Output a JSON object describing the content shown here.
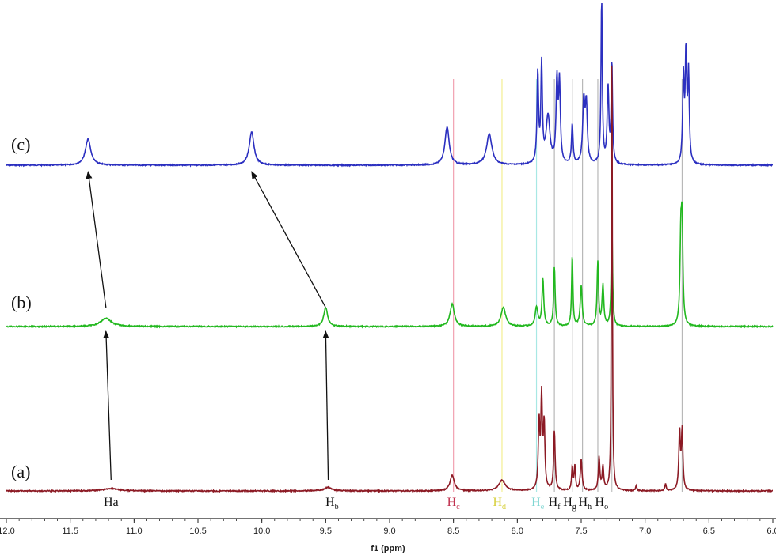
{
  "chart_data": {
    "type": "line",
    "title": "",
    "xlabel": "f1 (ppm)",
    "ylabel": "",
    "x_range": [
      12.0,
      6.0
    ],
    "reversed_x": true,
    "grid": false,
    "x_ticks": [
      "12.0",
      "11.5",
      "11.0",
      "10.5",
      "10.0",
      "9.5",
      "9.0",
      "8.5",
      "8.0",
      "7.5",
      "7.0",
      "6.5",
      "6.0"
    ],
    "series": [
      {
        "name": "(c)",
        "color": "#2b2fc0",
        "peaks": [
          {
            "ppm": 11.36,
            "h": 0.11,
            "w": 0.025
          },
          {
            "ppm": 10.08,
            "h": 0.14,
            "w": 0.022
          },
          {
            "ppm": 8.55,
            "h": 0.16,
            "w": 0.02
          },
          {
            "ppm": 8.22,
            "h": 0.13,
            "w": 0.025
          },
          {
            "ppm": 7.84,
            "h": 0.38,
            "w": 0.007
          },
          {
            "ppm": 7.81,
            "h": 0.41,
            "w": 0.007
          },
          {
            "ppm": 7.76,
            "h": 0.2,
            "w": 0.018
          },
          {
            "ppm": 7.69,
            "h": 0.34,
            "w": 0.008
          },
          {
            "ppm": 7.67,
            "h": 0.33,
            "w": 0.008
          },
          {
            "ppm": 7.57,
            "h": 0.17,
            "w": 0.007
          },
          {
            "ppm": 7.48,
            "h": 0.26,
            "w": 0.01
          },
          {
            "ppm": 7.46,
            "h": 0.24,
            "w": 0.009
          },
          {
            "ppm": 7.34,
            "h": 0.7,
            "w": 0.006
          },
          {
            "ppm": 7.29,
            "h": 0.32,
            "w": 0.008
          },
          {
            "ppm": 7.26,
            "h": 0.43,
            "w": 0.006
          },
          {
            "ppm": 6.7,
            "h": 0.36,
            "w": 0.007
          },
          {
            "ppm": 6.68,
            "h": 0.45,
            "w": 0.007
          },
          {
            "ppm": 6.66,
            "h": 0.37,
            "w": 0.007
          }
        ]
      },
      {
        "name": "(b)",
        "color": "#22b81f",
        "peaks": [
          {
            "ppm": 11.22,
            "h": 0.035,
            "w": 0.05
          },
          {
            "ppm": 9.5,
            "h": 0.08,
            "w": 0.018
          },
          {
            "ppm": 8.51,
            "h": 0.095,
            "w": 0.02
          },
          {
            "ppm": 8.11,
            "h": 0.08,
            "w": 0.022
          },
          {
            "ppm": 7.85,
            "h": 0.08,
            "w": 0.012
          },
          {
            "ppm": 7.8,
            "h": 0.2,
            "w": 0.008
          },
          {
            "ppm": 7.71,
            "h": 0.25,
            "w": 0.007
          },
          {
            "ppm": 7.57,
            "h": 0.3,
            "w": 0.006
          },
          {
            "ppm": 7.5,
            "h": 0.17,
            "w": 0.009
          },
          {
            "ppm": 7.37,
            "h": 0.27,
            "w": 0.007
          },
          {
            "ppm": 7.33,
            "h": 0.17,
            "w": 0.008
          },
          {
            "ppm": 7.26,
            "h": 0.45,
            "w": 0.006
          },
          {
            "ppm": 6.72,
            "h": 0.36,
            "w": 0.008
          },
          {
            "ppm": 6.71,
            "h": 0.38,
            "w": 0.007
          }
        ]
      },
      {
        "name": "(a)",
        "color": "#8c1a24",
        "peaks": [
          {
            "ppm": 11.18,
            "h": 0.01,
            "w": 0.07
          },
          {
            "ppm": 9.48,
            "h": 0.015,
            "w": 0.035
          },
          {
            "ppm": 8.51,
            "h": 0.065,
            "w": 0.02
          },
          {
            "ppm": 8.12,
            "h": 0.045,
            "w": 0.03
          },
          {
            "ppm": 7.83,
            "h": 0.28,
            "w": 0.007
          },
          {
            "ppm": 7.81,
            "h": 0.38,
            "w": 0.007
          },
          {
            "ppm": 7.79,
            "h": 0.27,
            "w": 0.007
          },
          {
            "ppm": 7.71,
            "h": 0.25,
            "w": 0.007
          },
          {
            "ppm": 7.57,
            "h": 0.1,
            "w": 0.006
          },
          {
            "ppm": 7.55,
            "h": 0.1,
            "w": 0.006
          },
          {
            "ppm": 7.5,
            "h": 0.13,
            "w": 0.008
          },
          {
            "ppm": 7.36,
            "h": 0.14,
            "w": 0.007
          },
          {
            "ppm": 7.33,
            "h": 0.1,
            "w": 0.007
          },
          {
            "ppm": 7.26,
            "h": 2.0,
            "w": 0.004
          },
          {
            "ppm": 7.07,
            "h": 0.02,
            "w": 0.006
          },
          {
            "ppm": 6.84,
            "h": 0.03,
            "w": 0.006
          },
          {
            "ppm": 6.73,
            "h": 0.25,
            "w": 0.007
          },
          {
            "ppm": 6.71,
            "h": 0.25,
            "w": 0.007
          }
        ]
      }
    ],
    "guide_lines": [
      {
        "ppm": 8.5,
        "color": "#f2a0b0"
      },
      {
        "ppm": 8.12,
        "color": "#f3ee90"
      },
      {
        "ppm": 7.85,
        "color": "#a8e8e4"
      },
      {
        "ppm": 7.71,
        "color": "#b8b8b8"
      },
      {
        "ppm": 7.57,
        "color": "#b8b8b8"
      },
      {
        "ppm": 7.49,
        "color": "#b8b8b8"
      },
      {
        "ppm": 7.37,
        "color": "#b8b8b8"
      },
      {
        "ppm": 7.26,
        "color": "#c0c0c0"
      },
      {
        "ppm": 6.71,
        "color": "#b8b8b8"
      }
    ],
    "arrows": [
      {
        "from_series": "(a)",
        "from_ppm": 11.18,
        "to_series": "(b)",
        "to_ppm": 11.22
      },
      {
        "from_series": "(b)",
        "from_ppm": 11.22,
        "to_series": "(c)",
        "to_ppm": 11.36
      },
      {
        "from_series": "(a)",
        "from_ppm": 9.48,
        "to_series": "(b)",
        "to_ppm": 9.5
      },
      {
        "from_series": "(b)",
        "from_ppm": 9.5,
        "to_series": "(c)",
        "to_ppm": 10.08
      }
    ],
    "peak_labels": [
      {
        "main": "Ha",
        "sub": "",
        "ppm": 11.18,
        "color": "#111111"
      },
      {
        "main": "H",
        "sub": "b",
        "ppm": 9.45,
        "color": "#111111"
      },
      {
        "main": "H",
        "sub": "c",
        "ppm": 8.5,
        "color": "#c0304e"
      },
      {
        "main": "H",
        "sub": "d",
        "ppm": 8.14,
        "color": "#d6cf3a"
      },
      {
        "main": "H",
        "sub": "e",
        "ppm": 7.84,
        "color": "#7fd6d2"
      },
      {
        "main": "H",
        "sub": "f",
        "ppm": 7.71,
        "color": "#111111"
      },
      {
        "main": "H",
        "sub": "g",
        "ppm": 7.59,
        "color": "#111111"
      },
      {
        "main": "H",
        "sub": "h",
        "ppm": 7.47,
        "color": "#111111"
      },
      {
        "main": "H",
        "sub": "o",
        "ppm": 7.34,
        "color": "#111111"
      }
    ]
  }
}
